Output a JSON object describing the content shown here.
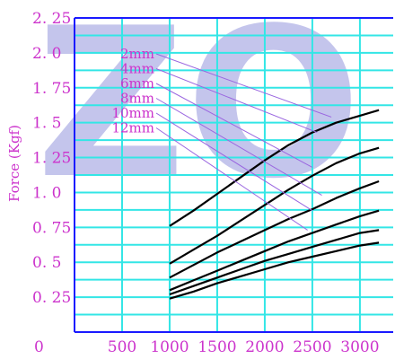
{
  "chart_data": {
    "type": "line",
    "ylabel": "Force (Kgf)",
    "xlabel": "",
    "watermark": "ZO",
    "x_ticks": [
      "500",
      "1000",
      "1500",
      "2000",
      "2500",
      "3000"
    ],
    "x_zero_label": "0",
    "y_ticks": [
      "0.25",
      "0.5",
      "0.75",
      "1.0",
      "1.25",
      "1.5",
      "1.75",
      "2.0",
      "2.25"
    ],
    "y_tick_labels": [
      "0. 25",
      "0. 5",
      "0. 75",
      "1. 0",
      "1. 25",
      "1. 5",
      "1. 75",
      "2. 0",
      "2. 25"
    ],
    "xlim": [
      0,
      3350
    ],
    "ylim": [
      0,
      2.25
    ],
    "grid": true,
    "colors": {
      "grid": "#33e6e6",
      "axis": "#1a1aff",
      "line": "#000000",
      "label": "#cc33cc",
      "leader": "#9a66e0",
      "watermark": "#7d7fd6"
    },
    "series": [
      {
        "name": "2mm",
        "x": [
          1000,
          1250,
          1500,
          1750,
          2000,
          2250,
          2500,
          2750,
          3000,
          3200
        ],
        "y": [
          0.76,
          0.87,
          0.99,
          1.11,
          1.23,
          1.34,
          1.43,
          1.5,
          1.55,
          1.59
        ]
      },
      {
        "name": "4mm",
        "x": [
          1000,
          1250,
          1500,
          1750,
          2000,
          2250,
          2500,
          2750,
          3000,
          3200
        ],
        "y": [
          0.49,
          0.59,
          0.69,
          0.8,
          0.91,
          1.02,
          1.12,
          1.21,
          1.28,
          1.32
        ]
      },
      {
        "name": "6mm",
        "x": [
          1000,
          1250,
          1500,
          1750,
          2000,
          2250,
          2500,
          2750,
          3000,
          3200
        ],
        "y": [
          0.39,
          0.48,
          0.57,
          0.65,
          0.73,
          0.81,
          0.88,
          0.96,
          1.03,
          1.08
        ]
      },
      {
        "name": "8mm",
        "x": [
          1000,
          1250,
          1500,
          1750,
          2000,
          2250,
          2500,
          2750,
          3000,
          3200
        ],
        "y": [
          0.3,
          0.37,
          0.44,
          0.51,
          0.58,
          0.65,
          0.71,
          0.77,
          0.83,
          0.87
        ]
      },
      {
        "name": "10mm",
        "x": [
          1000,
          1250,
          1500,
          1750,
          2000,
          2250,
          2500,
          2750,
          3000,
          3200
        ],
        "y": [
          0.27,
          0.33,
          0.39,
          0.45,
          0.51,
          0.56,
          0.61,
          0.66,
          0.71,
          0.73
        ]
      },
      {
        "name": "12mm",
        "x": [
          1000,
          1250,
          1500,
          1750,
          2000,
          2250,
          2500,
          2750,
          3000,
          3200
        ],
        "y": [
          0.24,
          0.29,
          0.35,
          0.4,
          0.45,
          0.5,
          0.54,
          0.58,
          0.62,
          0.64
        ]
      }
    ],
    "legend_targets": [
      {
        "x": 2700,
        "y": 1.54
      },
      {
        "x": 2550,
        "y": 1.43
      },
      {
        "x": 2500,
        "y": 1.18
      },
      {
        "x": 2600,
        "y": 0.98
      },
      {
        "x": 2500,
        "y": 0.87
      },
      {
        "x": 2450,
        "y": 0.73
      }
    ]
  }
}
